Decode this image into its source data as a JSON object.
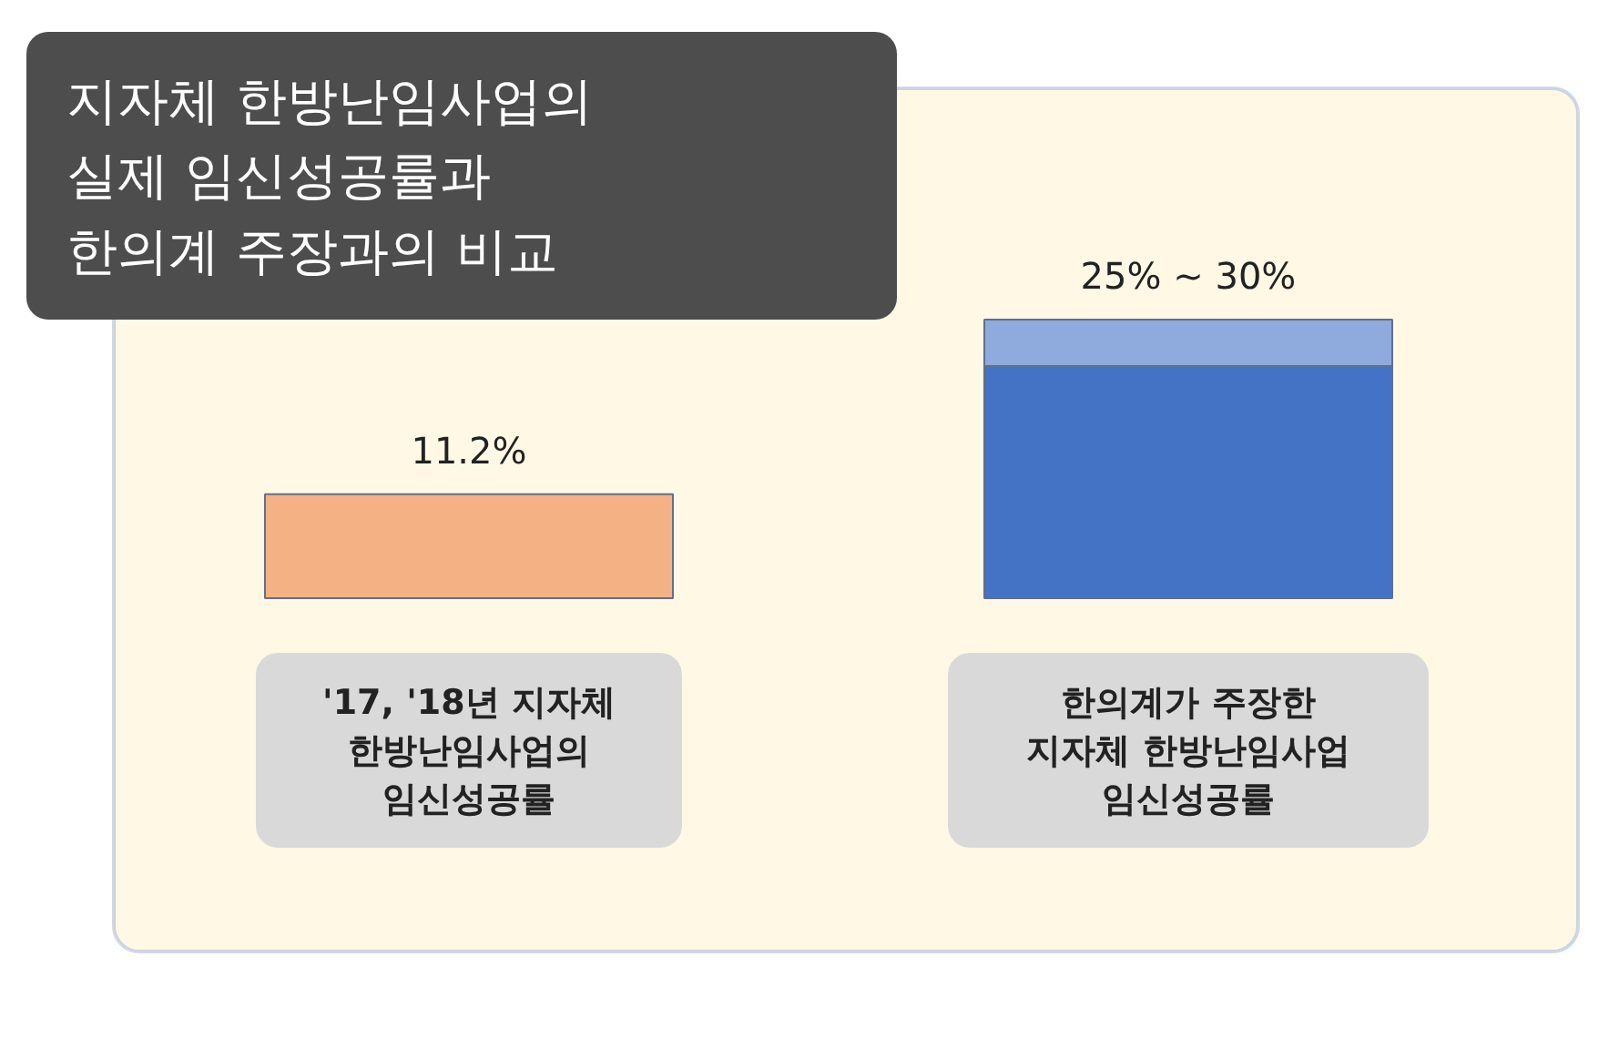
{
  "chart_data": {
    "type": "bar",
    "title": "지자체 한방난임사업의\n실제 임신성공률과\n한의계 주장과의 비교",
    "categories": [
      "'17, '18년 지자체\n한방난임사업의\n임신성공률",
      "한의계가 주장한\n지자체 한방난임사업\n임신성공률"
    ],
    "stacked": true,
    "series": [
      {
        "colors": [
          "#f4b183",
          "#4472c4"
        ],
        "values": [
          11.2,
          25
        ],
        "value_labels": [
          "11.2%",
          "25% ~ 30%"
        ]
      },
      {
        "color": "#8faadc",
        "values": [
          null,
          5
        ]
      }
    ]
  }
}
